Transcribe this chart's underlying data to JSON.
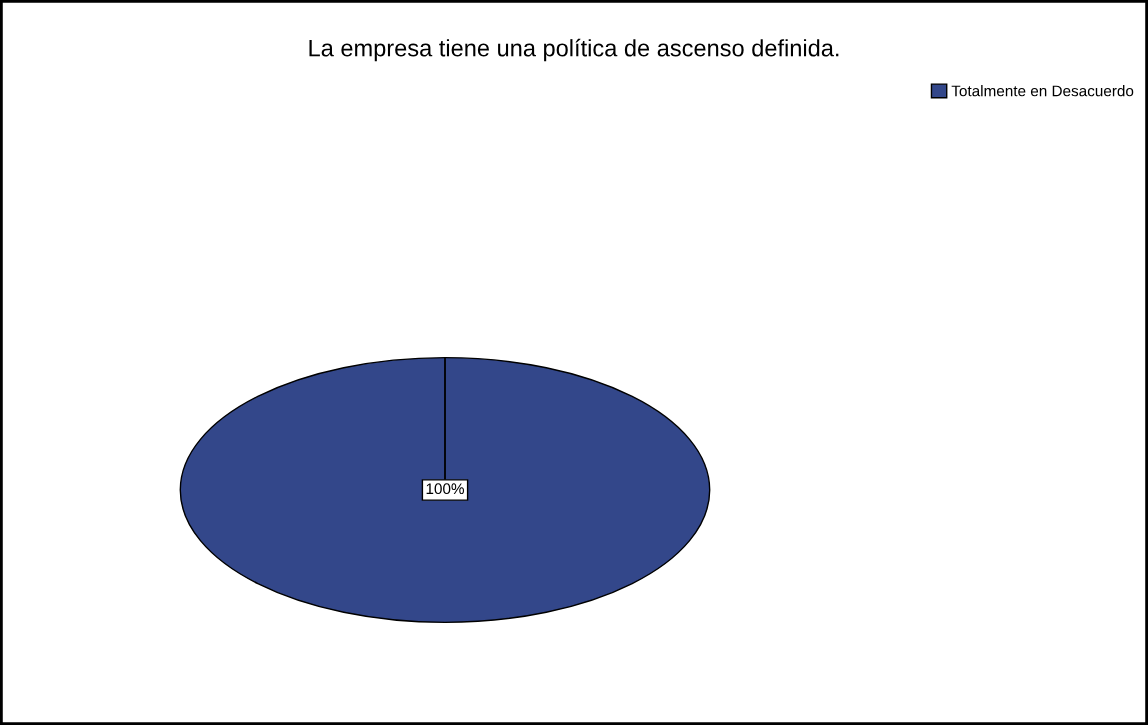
{
  "chart_data": {
    "type": "pie",
    "title": "La empresa tiene una política de ascenso definida.",
    "categories": [
      "Totalmente en Desacuerdo"
    ],
    "values": [
      100
    ],
    "colors": [
      "#33478a"
    ],
    "value_labels": [
      "100%"
    ],
    "legend": "top right"
  }
}
